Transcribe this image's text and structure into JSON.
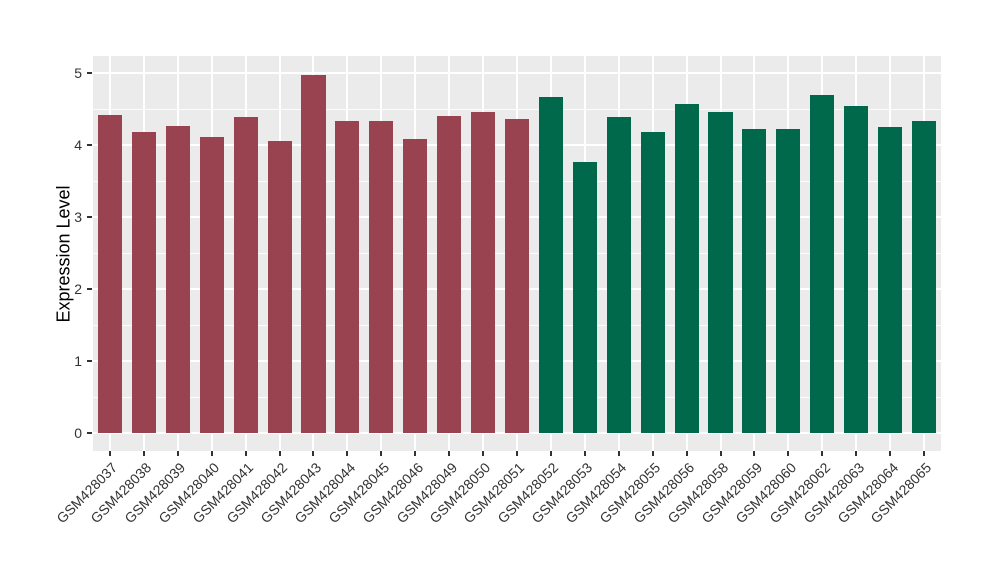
{
  "chart_data": {
    "type": "bar",
    "title": "",
    "xlabel": "",
    "ylabel": "Expression Level",
    "ylim": [
      0,
      5
    ],
    "yticks": [
      0,
      1,
      2,
      3,
      4,
      5
    ],
    "y_minor_ticks": [
      0.5,
      1.5,
      2.5,
      3.5,
      4.5
    ],
    "grid": "on",
    "legend_position": "none",
    "panel_background": "#EBEBEB",
    "gridline_color": "#FFFFFF",
    "axis_text_color": "#333333",
    "group_colors": {
      "group1": "#9A4350",
      "group2": "#00694B"
    },
    "categories": [
      "GSM428037",
      "GSM428038",
      "GSM428039",
      "GSM428040",
      "GSM428041",
      "GSM428042",
      "GSM428043",
      "GSM428044",
      "GSM428045",
      "GSM428046",
      "GSM428049",
      "GSM428050",
      "GSM428051",
      "GSM428052",
      "GSM428053",
      "GSM428054",
      "GSM428055",
      "GSM428056",
      "GSM428058",
      "GSM428059",
      "GSM428060",
      "GSM428062",
      "GSM428063",
      "GSM428064",
      "GSM428065"
    ],
    "values": [
      4.42,
      4.18,
      4.27,
      4.12,
      4.39,
      4.06,
      4.97,
      4.33,
      4.33,
      4.08,
      4.4,
      4.46,
      4.37,
      4.67,
      3.76,
      4.39,
      4.19,
      4.57,
      4.46,
      4.22,
      4.23,
      4.7,
      4.55,
      4.25,
      4.33
    ],
    "groups": [
      "group1",
      "group1",
      "group1",
      "group1",
      "group1",
      "group1",
      "group1",
      "group1",
      "group1",
      "group1",
      "group1",
      "group1",
      "group1",
      "group2",
      "group2",
      "group2",
      "group2",
      "group2",
      "group2",
      "group2",
      "group2",
      "group2",
      "group2",
      "group2",
      "group2"
    ]
  }
}
